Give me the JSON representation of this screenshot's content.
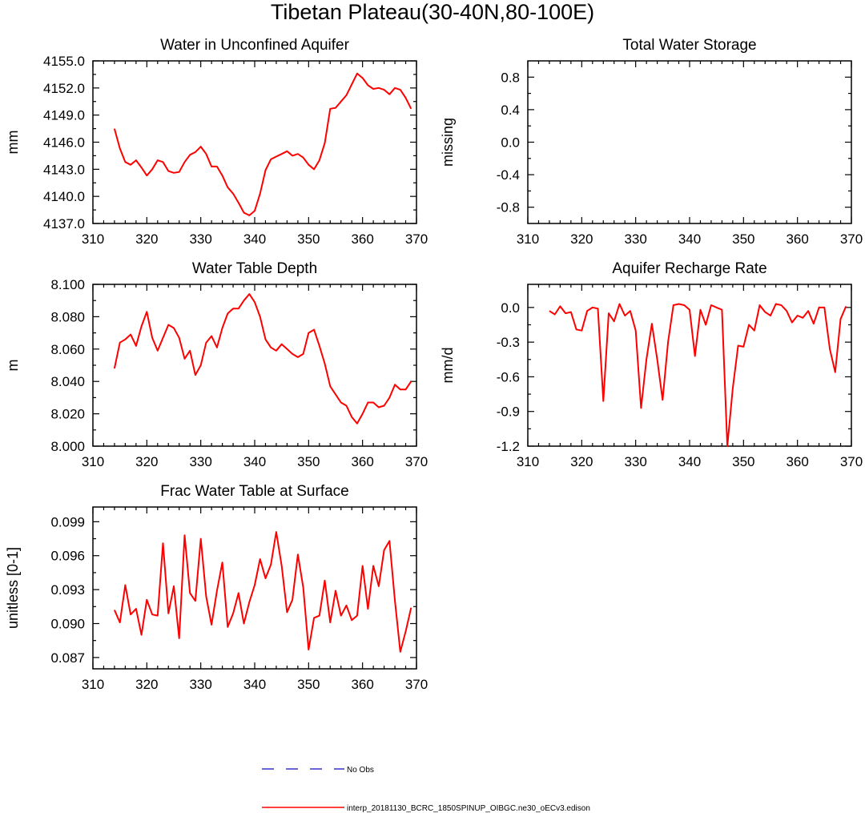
{
  "title": "Tibetan Plateau(30-40N,80-100E)",
  "chart_data": [
    {
      "type": "line",
      "title": "Water in Unconfined Aquifer",
      "xlabel": "",
      "ylabel": "mm",
      "xlim": [
        310,
        370
      ],
      "ylim": [
        4137.0,
        4155.0
      ],
      "xticks": [
        310,
        320,
        330,
        340,
        350,
        360,
        370
      ],
      "xtick_labels": [
        "310",
        "320",
        "330",
        "340",
        "350",
        "360",
        "370"
      ],
      "yticks": [
        4137.0,
        4140.0,
        4143.0,
        4146.0,
        4149.0,
        4152.0,
        4155.0
      ],
      "ytick_labels": [
        "4137.0",
        "4140.0",
        "4143.0",
        "4146.0",
        "4149.0",
        "4152.0",
        "4155.0"
      ],
      "x": [
        314,
        315,
        316,
        317,
        318,
        319,
        320,
        321,
        322,
        323,
        324,
        325,
        326,
        327,
        328,
        329,
        330,
        331,
        332,
        333,
        334,
        335,
        336,
        337,
        338,
        339,
        340,
        341,
        342,
        343,
        344,
        345,
        346,
        347,
        348,
        349,
        350,
        351,
        352,
        353,
        354,
        355,
        356,
        357,
        358,
        359,
        360,
        361,
        362,
        363,
        364,
        365,
        366,
        367,
        368,
        369
      ],
      "series": [
        {
          "name": "interp_20181130_BCRC_1850SPINUP_OIBGC.ne30_oECv3.edison",
          "values": [
            4147.5,
            4145.3,
            4143.8,
            4143.5,
            4144.0,
            4143.2,
            4142.3,
            4143.0,
            4144.0,
            4143.8,
            4142.8,
            4142.6,
            4142.7,
            4143.8,
            4144.6,
            4144.9,
            4145.5,
            4144.7,
            4143.3,
            4143.3,
            4142.3,
            4141.0,
            4140.3,
            4139.3,
            4138.2,
            4137.9,
            4138.4,
            4140.3,
            4142.9,
            4144.1,
            4144.4,
            4144.7,
            4145.0,
            4144.5,
            4144.7,
            4144.3,
            4143.5,
            4143.0,
            4144.0,
            4145.9,
            4149.7,
            4149.8,
            4150.5,
            4151.2,
            4152.4,
            4153.6,
            4153.1,
            4152.3,
            4151.9,
            4152.0,
            4151.8,
            4151.3,
            4152.0,
            4151.8,
            4150.9,
            4149.7
          ]
        }
      ]
    },
    {
      "type": "line",
      "title": "Total Water Storage",
      "xlabel": "",
      "ylabel": "missing",
      "xlim": [
        310,
        370
      ],
      "ylim": [
        -1.0,
        1.0
      ],
      "xticks": [
        310,
        320,
        330,
        340,
        350,
        360,
        370
      ],
      "xtick_labels": [
        "310",
        "320",
        "330",
        "340",
        "350",
        "360",
        "370"
      ],
      "yticks": [
        -0.8,
        -0.4,
        0.0,
        0.4,
        0.8
      ],
      "ytick_labels": [
        "-0.8",
        "-0.4",
        "0.0",
        "0.4",
        "0.8"
      ],
      "x": [],
      "series": []
    },
    {
      "type": "line",
      "title": "Water Table Depth",
      "xlabel": "",
      "ylabel": "m",
      "xlim": [
        310,
        370
      ],
      "ylim": [
        8.0,
        8.1
      ],
      "xticks": [
        310,
        320,
        330,
        340,
        350,
        360,
        370
      ],
      "xtick_labels": [
        "310",
        "320",
        "330",
        "340",
        "350",
        "360",
        "370"
      ],
      "yticks": [
        8.0,
        8.02,
        8.04,
        8.06,
        8.08,
        8.1
      ],
      "ytick_labels": [
        "8.000",
        "8.020",
        "8.040",
        "8.060",
        "8.080",
        "8.100"
      ],
      "x": [
        314,
        315,
        316,
        317,
        318,
        319,
        320,
        321,
        322,
        323,
        324,
        325,
        326,
        327,
        328,
        329,
        330,
        331,
        332,
        333,
        334,
        335,
        336,
        337,
        338,
        339,
        340,
        341,
        342,
        343,
        344,
        345,
        346,
        347,
        348,
        349,
        350,
        351,
        352,
        353,
        354,
        355,
        356,
        357,
        358,
        359,
        360,
        361,
        362,
        363,
        364,
        365,
        366,
        367,
        368,
        369
      ],
      "series": [
        {
          "name": "interp_20181130_BCRC_1850SPINUP_OIBGC.ne30_oECv3.edison",
          "values": [
            8.048,
            8.064,
            8.066,
            8.069,
            8.062,
            8.074,
            8.083,
            8.067,
            8.059,
            8.067,
            8.075,
            8.073,
            8.067,
            8.054,
            8.059,
            8.044,
            8.05,
            8.064,
            8.068,
            8.061,
            8.073,
            8.082,
            8.085,
            8.085,
            8.09,
            8.094,
            8.089,
            8.08,
            8.066,
            8.061,
            8.059,
            8.063,
            8.06,
            8.057,
            8.055,
            8.057,
            8.07,
            8.072,
            8.062,
            8.051,
            8.037,
            8.032,
            8.027,
            8.025,
            8.018,
            8.014,
            8.02,
            8.027,
            8.027,
            8.024,
            8.025,
            8.03,
            8.038,
            8.035,
            8.035,
            8.04
          ]
        }
      ]
    },
    {
      "type": "line",
      "title": "Aquifer Recharge Rate",
      "xlabel": "",
      "ylabel": "mm/d",
      "xlim": [
        310,
        370
      ],
      "ylim": [
        -1.2,
        0.2
      ],
      "xticks": [
        310,
        320,
        330,
        340,
        350,
        360,
        370
      ],
      "xtick_labels": [
        "310",
        "320",
        "330",
        "340",
        "350",
        "360",
        "370"
      ],
      "yticks": [
        -1.2,
        -0.9,
        -0.6,
        -0.3,
        0.0
      ],
      "ytick_labels": [
        "-1.2",
        "-0.9",
        "-0.6",
        "-0.3",
        "0.0"
      ],
      "x": [
        314,
        315,
        316,
        317,
        318,
        319,
        320,
        321,
        322,
        323,
        324,
        325,
        326,
        327,
        328,
        329,
        330,
        331,
        332,
        333,
        334,
        335,
        336,
        337,
        338,
        339,
        340,
        341,
        342,
        343,
        344,
        345,
        346,
        347,
        348,
        349,
        350,
        351,
        352,
        353,
        354,
        355,
        356,
        357,
        358,
        359,
        360,
        361,
        362,
        363,
        364,
        365,
        366,
        367,
        368,
        369
      ],
      "series": [
        {
          "name": "interp_20181130_BCRC_1850SPINUP_OIBGC.ne30_oECv3.edison",
          "values": [
            -0.03,
            -0.06,
            0.01,
            -0.05,
            -0.04,
            -0.19,
            -0.2,
            -0.03,
            0.0,
            -0.01,
            -0.81,
            -0.05,
            -0.12,
            0.03,
            -0.07,
            -0.03,
            -0.2,
            -0.87,
            -0.45,
            -0.14,
            -0.45,
            -0.8,
            -0.3,
            0.02,
            0.03,
            0.02,
            -0.02,
            -0.42,
            -0.02,
            -0.15,
            0.02,
            0.0,
            -0.02,
            -1.2,
            -0.7,
            -0.33,
            -0.34,
            -0.15,
            -0.2,
            0.02,
            -0.04,
            -0.07,
            0.03,
            0.02,
            -0.03,
            -0.13,
            -0.07,
            -0.09,
            -0.03,
            -0.14,
            0.0,
            0.0,
            -0.36,
            -0.56,
            -0.1,
            0.01
          ]
        }
      ]
    },
    {
      "type": "line",
      "title": "Frac Water Table at Surface",
      "xlabel": "",
      "ylabel": "unitless [0-1]",
      "xlim": [
        310,
        370
      ],
      "ylim": [
        0.086,
        0.1003
      ],
      "xticks": [
        310,
        320,
        330,
        340,
        350,
        360,
        370
      ],
      "xtick_labels": [
        "310",
        "320",
        "330",
        "340",
        "350",
        "360",
        "370"
      ],
      "yticks": [
        0.087,
        0.09,
        0.093,
        0.096,
        0.099
      ],
      "ytick_labels": [
        "0.087",
        "0.090",
        "0.093",
        "0.096",
        "0.099"
      ],
      "x": [
        314,
        315,
        316,
        317,
        318,
        319,
        320,
        321,
        322,
        323,
        324,
        325,
        326,
        327,
        328,
        329,
        330,
        331,
        332,
        333,
        334,
        335,
        336,
        337,
        338,
        339,
        340,
        341,
        342,
        343,
        344,
        345,
        346,
        347,
        348,
        349,
        350,
        351,
        352,
        353,
        354,
        355,
        356,
        357,
        358,
        359,
        360,
        361,
        362,
        363,
        364,
        365,
        366,
        367,
        368,
        369
      ],
      "series": [
        {
          "name": "interp_20181130_BCRC_1850SPINUP_OIBGC.ne30_oECv3.edison",
          "values": [
            0.0912,
            0.0901,
            0.0934,
            0.0908,
            0.0913,
            0.089,
            0.0921,
            0.0908,
            0.0907,
            0.0971,
            0.0909,
            0.0933,
            0.0887,
            0.0978,
            0.0927,
            0.092,
            0.0975,
            0.0924,
            0.0899,
            0.0929,
            0.0954,
            0.0897,
            0.0909,
            0.0927,
            0.09,
            0.0919,
            0.0934,
            0.0957,
            0.094,
            0.0952,
            0.0981,
            0.0951,
            0.091,
            0.0921,
            0.0961,
            0.0932,
            0.0877,
            0.0905,
            0.0907,
            0.0938,
            0.0901,
            0.0929,
            0.0907,
            0.0916,
            0.0903,
            0.0907,
            0.0951,
            0.0913,
            0.0951,
            0.0933,
            0.0965,
            0.0973,
            0.092,
            0.0875,
            0.0893,
            0.0914
          ]
        }
      ]
    }
  ],
  "legend": [
    {
      "label": "No Obs",
      "color": "#3333cc",
      "style": "dashed"
    },
    {
      "label": "interp_20181130_BCRC_1850SPINUP_OIBGC.ne30_oECv3.edison",
      "color": "#ff0000",
      "style": "solid"
    }
  ],
  "colors": {
    "model_line": "#ff0000",
    "obs_line": "#3333cc",
    "axis": "#000000"
  }
}
